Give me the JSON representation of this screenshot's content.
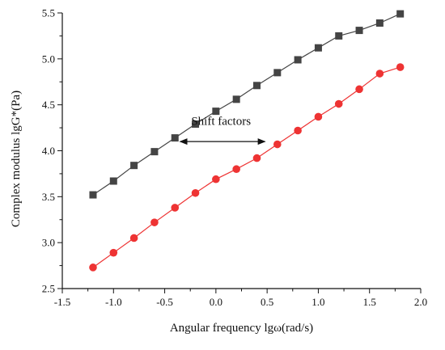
{
  "chart_data": {
    "type": "line",
    "title": "",
    "xlabel": "Angular frequency lgω(rad/s)",
    "ylabel": "Complex modulus lgG*(Pa)",
    "xlim": [
      -1.5,
      2.0
    ],
    "ylim": [
      2.5,
      5.5
    ],
    "x_ticks": [
      -1.5,
      -1.0,
      -0.5,
      0.0,
      0.5,
      1.0,
      1.5,
      2.0
    ],
    "x_tick_labels": [
      "-1.5",
      "-1.0",
      "-0.5",
      "0.0",
      "0.5",
      "1.0",
      "1.5",
      "2.0"
    ],
    "y_ticks": [
      2.5,
      3.0,
      3.5,
      4.0,
      4.5,
      5.0,
      5.5
    ],
    "y_tick_labels": [
      "2.5",
      "3.0",
      "3.5",
      "4.0",
      "4.5",
      "5.0",
      "5.5"
    ],
    "grid": false,
    "legend": "none",
    "x": [
      -1.2,
      -1.0,
      -0.8,
      -0.6,
      -0.4,
      -0.2,
      0.0,
      0.2,
      0.4,
      0.6,
      0.8,
      1.0,
      1.2,
      1.4,
      1.6,
      1.8
    ],
    "series": [
      {
        "marker": "square",
        "color": "#444444",
        "values": [
          3.52,
          3.67,
          3.84,
          3.99,
          4.14,
          4.29,
          4.43,
          4.56,
          4.71,
          4.85,
          4.99,
          5.12,
          5.25,
          5.31,
          5.39,
          5.49
        ]
      },
      {
        "marker": "circle",
        "color": "#ee3333",
        "values": [
          2.73,
          2.89,
          3.05,
          3.22,
          3.38,
          3.54,
          3.69,
          3.8,
          3.92,
          4.07,
          4.22,
          4.37,
          4.51,
          4.67,
          4.84,
          4.91
        ]
      }
    ],
    "annotation": {
      "text": "Shift factors",
      "arrow_from_x": -0.35,
      "arrow_to_x": 0.48,
      "arrow_y": 4.1,
      "text_x": 0.05,
      "text_y": 4.28,
      "style": "double-headed arrow"
    }
  }
}
